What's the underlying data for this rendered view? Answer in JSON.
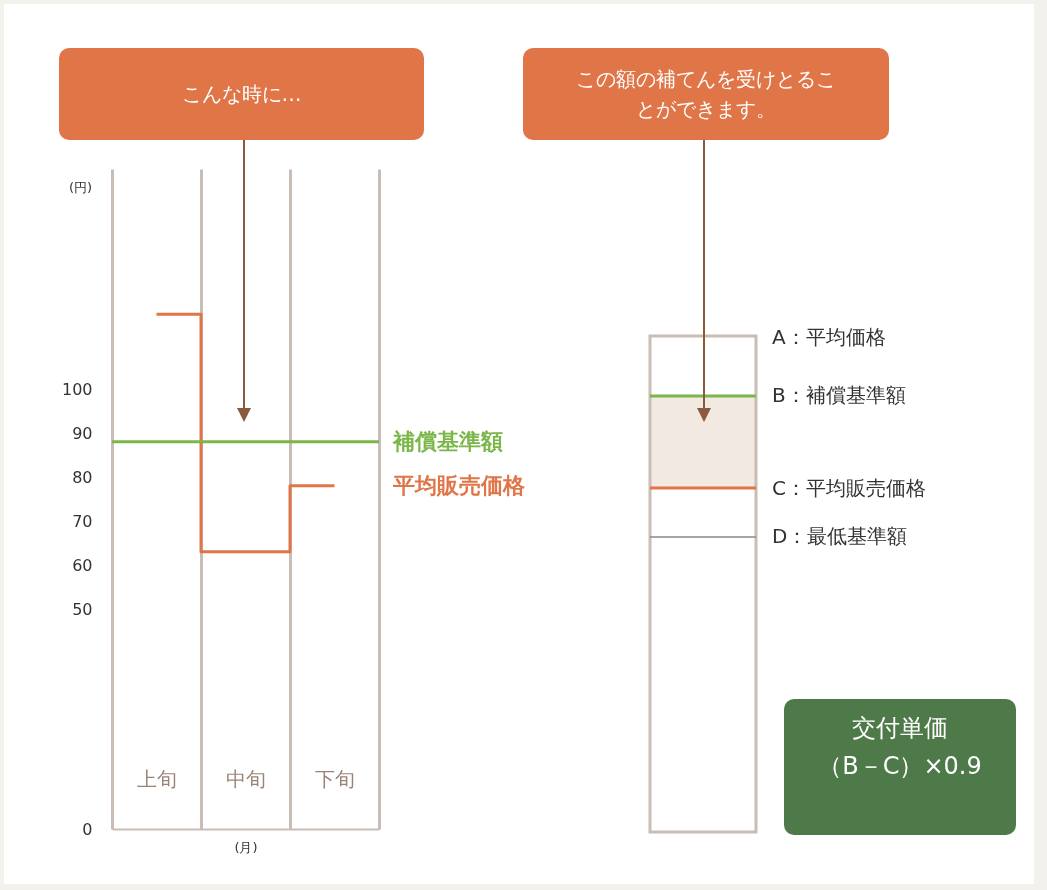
{
  "chart_data": [
    {
      "type": "step",
      "ylabel": "(円)",
      "xlabel": "(月)",
      "categories": [
        "上旬",
        "中旬",
        "下旬"
      ],
      "series": [
        {
          "name": "平均販売価格",
          "color": "#e07548",
          "values": [
            117,
            63,
            78
          ]
        }
      ],
      "ylim": [
        0,
        150
      ],
      "yticks": [
        0,
        50,
        60,
        70,
        80,
        90,
        100
      ],
      "grid": "x",
      "ref_lines": [
        {
          "axis": "y",
          "value": 88,
          "label": "補償基準額",
          "color": "#7ab648"
        }
      ],
      "annotations": [
        "こんな時に…"
      ]
    },
    {
      "type": "other",
      "annotations": [
        "この額の補てんを受けとることができます。",
        "A：平均価格",
        "B：補償基準額",
        "C：平均販売価格",
        "D：最低基準額",
        "交付単価",
        "（B－C）×0.9"
      ]
    }
  ]
}
